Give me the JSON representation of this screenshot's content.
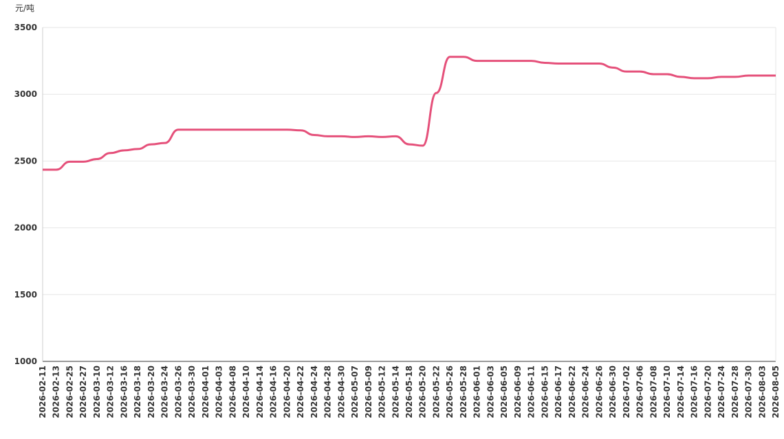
{
  "chart_data": {
    "type": "line",
    "y_label": "元/吨",
    "categories": [
      "2026-02-11",
      "2026-02-13",
      "2026-02-25",
      "2026-02-27",
      "2026-03-10",
      "2026-03-12",
      "2026-03-16",
      "2026-03-18",
      "2026-03-20",
      "2026-03-24",
      "2026-03-26",
      "2026-03-30",
      "2026-04-01",
      "2026-04-03",
      "2026-04-08",
      "2026-04-10",
      "2026-04-14",
      "2026-04-16",
      "2026-04-20",
      "2026-04-22",
      "2026-04-24",
      "2026-04-28",
      "2026-04-30",
      "2026-05-07",
      "2026-05-09",
      "2026-05-12",
      "2026-05-14",
      "2026-05-18",
      "2026-05-20",
      "2026-05-22",
      "2026-05-26",
      "2026-05-28",
      "2026-06-01",
      "2026-06-03",
      "2026-06-05",
      "2026-06-09",
      "2026-06-11",
      "2026-06-15",
      "2026-06-17",
      "2026-06-22",
      "2026-06-24",
      "2026-06-26",
      "2026-06-30",
      "2026-07-02",
      "2026-07-06",
      "2026-07-08",
      "2026-07-10",
      "2026-07-14",
      "2026-07-16",
      "2026-07-20",
      "2026-07-24",
      "2026-07-28",
      "2026-07-30",
      "2026-08-03",
      "2026-08-05"
    ],
    "values": [
      2435,
      2435,
      2495,
      2495,
      2515,
      2560,
      2580,
      2590,
      2625,
      2635,
      2735,
      2735,
      2735,
      2735,
      2735,
      2735,
      2735,
      2735,
      2735,
      2730,
      2695,
      2685,
      2685,
      2680,
      2685,
      2680,
      2685,
      2625,
      2615,
      3010,
      3280,
      3280,
      3250,
      3250,
      3250,
      3250,
      3250,
      3235,
      3230,
      3230,
      3230,
      3230,
      3200,
      3170,
      3170,
      3150,
      3150,
      3130,
      3120,
      3120,
      3130,
      3130,
      3140,
      3140,
      3140
    ],
    "color": "#e5507a",
    "ylim": [
      1000,
      3500
    ],
    "yticks": [
      1000,
      1500,
      2000,
      2500,
      3000,
      3500
    ],
    "grid": true
  }
}
